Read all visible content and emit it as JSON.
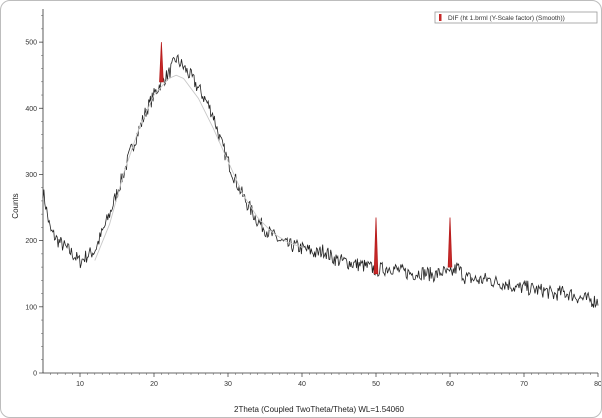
{
  "chart_data": {
    "type": "line",
    "xlabel": "2Theta (Coupled TwoTheta/Theta) WL=1.54060",
    "ylabel": "Counts",
    "xlim": [
      5,
      80
    ],
    "ylim": [
      0,
      550
    ],
    "x_ticks": [
      10,
      20,
      30,
      40,
      50,
      60,
      70,
      80
    ],
    "y_ticks": [
      0,
      100,
      200,
      300,
      400,
      500
    ],
    "grid": false,
    "legend": {
      "position": "top-right",
      "entries": [
        {
          "label": "DIF (ht 1.brml (Y-Scale factor) (Smooth))",
          "color": "#c62828"
        }
      ]
    },
    "series": [
      {
        "color": "#222222",
        "x": [
          5,
          6,
          7,
          8,
          9,
          10,
          11,
          12,
          13,
          14,
          15,
          16,
          17,
          18,
          19,
          20,
          21,
          22,
          23,
          24,
          25,
          26,
          27,
          28,
          29,
          30,
          31,
          32,
          33,
          34,
          35,
          36,
          37,
          38,
          39,
          40,
          41,
          42,
          43,
          44,
          45,
          46,
          47,
          48,
          49,
          50,
          51,
          52,
          53,
          54,
          55,
          56,
          57,
          58,
          59,
          60,
          61,
          62,
          63,
          64,
          65,
          66,
          67,
          68,
          69,
          70,
          71,
          72,
          73,
          74,
          75,
          76,
          77,
          78,
          79,
          80
        ],
        "y": [
          275,
          215,
          200,
          190,
          180,
          168,
          178,
          185,
          212,
          240,
          272,
          305,
          340,
          368,
          398,
          420,
          440,
          452,
          475,
          462,
          448,
          430,
          412,
          390,
          350,
          320,
          292,
          268,
          248,
          230,
          218,
          208,
          200,
          193,
          192,
          188,
          185,
          180,
          186,
          175,
          170,
          168,
          165,
          163,
          160,
          156,
          157,
          160,
          155,
          152,
          150,
          152,
          150,
          148,
          153,
          148,
          160,
          145,
          142,
          140,
          142,
          138,
          136,
          134,
          128,
          130,
          127,
          125,
          124,
          118,
          122,
          120,
          116,
          112,
          110,
          108
        ]
      },
      {
        "color": "#c8c8c8",
        "x": [
          12,
          14,
          16,
          18,
          20,
          22,
          23,
          24,
          26,
          28,
          30,
          32,
          34,
          36,
          38,
          40
        ],
        "y": [
          170,
          225,
          305,
          370,
          420,
          445,
          450,
          445,
          415,
          370,
          320,
          270,
          235,
          212,
          198,
          190
        ]
      }
    ],
    "peaks": [
      {
        "x": 21,
        "y": 500,
        "base": 440
      },
      {
        "x": 50,
        "y": 235,
        "base": 150
      },
      {
        "x": 60,
        "y": 235,
        "base": 160
      }
    ]
  }
}
